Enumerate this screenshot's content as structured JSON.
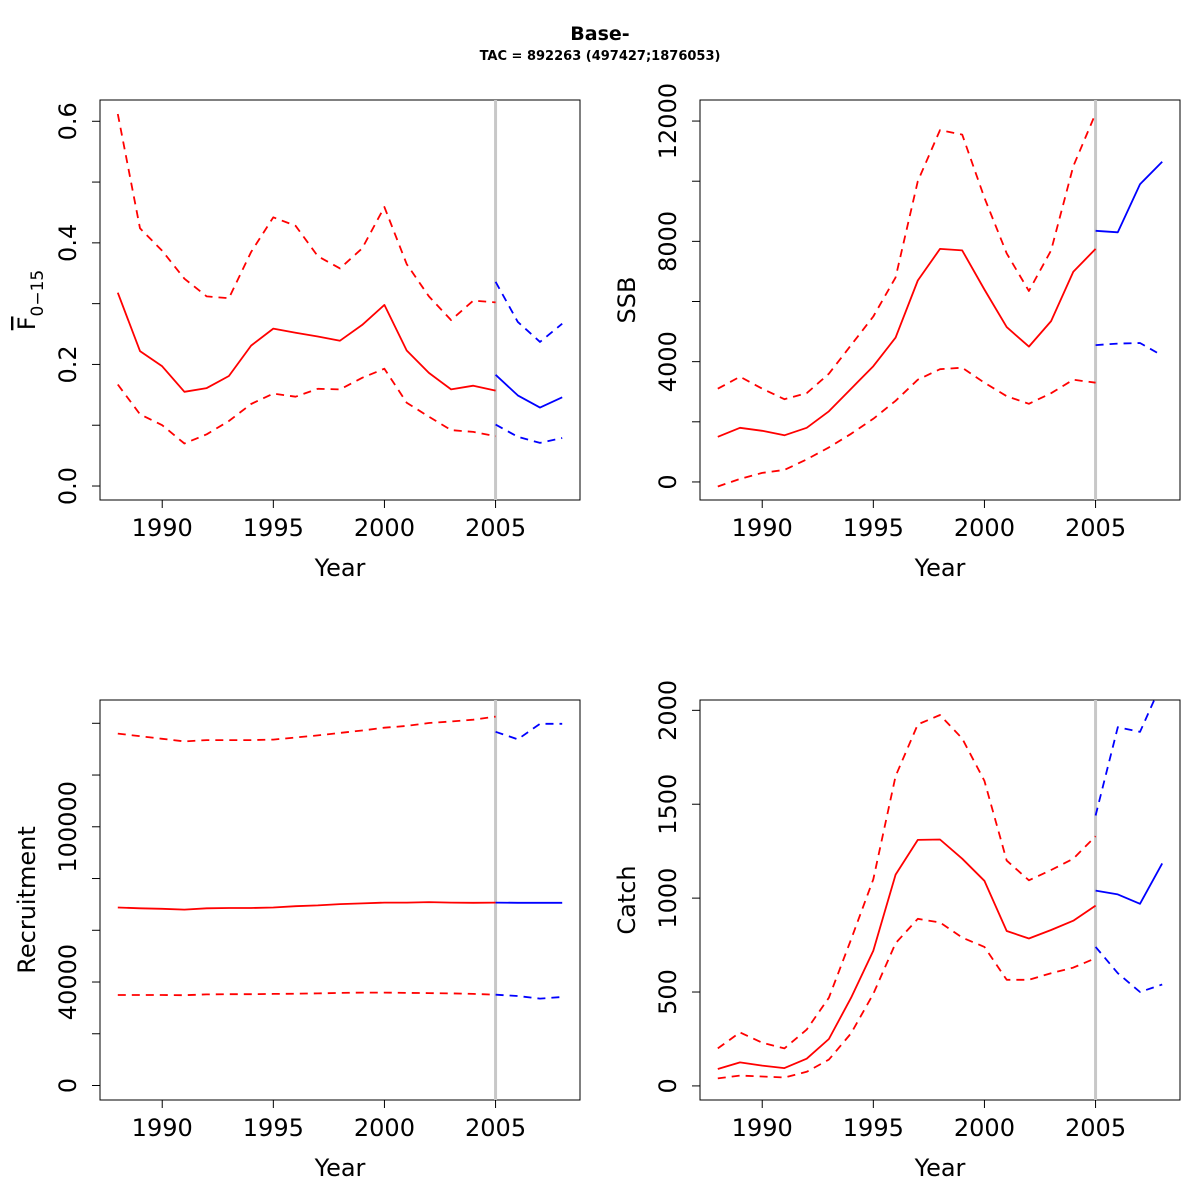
{
  "figure": {
    "title": "Base-",
    "subtitle": "TAC = 892263 (497427;1876053)"
  },
  "colors": {
    "historical": "#ff0000",
    "projection": "#0000ff",
    "divider": "#c8c8c8"
  },
  "chart_data": [
    {
      "type": "line",
      "id": "fbar",
      "ylabel_main": "F",
      "ylabel_sub": "0−15",
      "xlabel": "Year",
      "xlim": [
        1987.2,
        2008.8
      ],
      "ylim": [
        -0.023,
        0.635
      ],
      "xticks": [
        1990,
        1995,
        2000,
        2005
      ],
      "yticks": [
        0.0,
        0.2,
        0.4,
        0.6
      ],
      "yticks_minor": [
        0.1,
        0.3,
        0.5
      ],
      "ytick_labels": [
        "0.0",
        "0.2",
        "0.4",
        "0.6"
      ],
      "divider_x": 2005,
      "series": [
        {
          "style": "solid",
          "color_key": "historical",
          "x": [
            1988,
            1989,
            1990,
            1991,
            1992,
            1993,
            1994,
            1995,
            1996,
            1997,
            1998,
            1999,
            2000,
            2001,
            2002,
            2003,
            2004,
            2005
          ],
          "y": [
            0.318,
            0.222,
            0.197,
            0.155,
            0.161,
            0.181,
            0.231,
            0.259,
            0.252,
            0.246,
            0.239,
            0.265,
            0.298,
            0.223,
            0.186,
            0.159,
            0.165,
            0.157
          ]
        },
        {
          "style": "dashed",
          "color_key": "historical",
          "x": [
            1988,
            1989,
            1990,
            1991,
            1992,
            1993,
            1994,
            1995,
            1996,
            1997,
            1998,
            1999,
            2000,
            2001,
            2002,
            2003,
            2004,
            2005
          ],
          "y": [
            0.612,
            0.424,
            0.387,
            0.341,
            0.312,
            0.309,
            0.385,
            0.442,
            0.428,
            0.378,
            0.358,
            0.391,
            0.459,
            0.365,
            0.312,
            0.273,
            0.305,
            0.302
          ]
        },
        {
          "style": "dashed",
          "color_key": "historical",
          "x": [
            1988,
            1989,
            1990,
            1991,
            1992,
            1993,
            1994,
            1995,
            1996,
            1997,
            1998,
            1999,
            2000,
            2001,
            2002,
            2003,
            2004,
            2005
          ],
          "y": [
            0.167,
            0.118,
            0.1,
            0.07,
            0.085,
            0.107,
            0.135,
            0.152,
            0.147,
            0.16,
            0.159,
            0.178,
            0.193,
            0.137,
            0.114,
            0.092,
            0.089,
            0.082
          ]
        },
        {
          "style": "solid",
          "color_key": "projection",
          "x": [
            2005,
            2006,
            2007,
            2008
          ],
          "y": [
            0.183,
            0.149,
            0.129,
            0.146
          ]
        },
        {
          "style": "dashed",
          "color_key": "projection",
          "x": [
            2005,
            2006,
            2007,
            2008
          ],
          "y": [
            0.336,
            0.27,
            0.237,
            0.267
          ]
        },
        {
          "style": "dashed",
          "color_key": "projection",
          "x": [
            2005,
            2006,
            2007,
            2008
          ],
          "y": [
            0.101,
            0.081,
            0.071,
            0.079
          ]
        }
      ]
    },
    {
      "type": "line",
      "id": "ssb",
      "ylabel": "SSB",
      "xlabel": "Year",
      "xlim": [
        1987.2,
        2008.8
      ],
      "ylim": [
        -600,
        12700
      ],
      "xticks": [
        1990,
        1995,
        2000,
        2005
      ],
      "yticks": [
        0,
        4000,
        8000,
        12000
      ],
      "yticks_minor": [
        2000,
        6000,
        10000
      ],
      "ytick_labels": [
        "0",
        "4000",
        "8000",
        "12000"
      ],
      "divider_x": 2005,
      "series": [
        {
          "style": "solid",
          "color_key": "historical",
          "x": [
            1988,
            1989,
            1990,
            1991,
            1992,
            1993,
            1994,
            1995,
            1996,
            1997,
            1998,
            1999,
            2000,
            2001,
            2002,
            2003,
            2004,
            2005
          ],
          "y": [
            1500,
            1800,
            1700,
            1550,
            1800,
            2350,
            3100,
            3850,
            4800,
            6700,
            7750,
            7700,
            6400,
            5150,
            4500,
            5350,
            6990,
            7750
          ]
        },
        {
          "style": "dashed",
          "color_key": "historical",
          "x": [
            1988,
            1989,
            1990,
            1991,
            1992,
            1993,
            1994,
            1995,
            1996,
            1997,
            1998,
            1999,
            2000,
            2001,
            2002,
            2003,
            2004,
            2005
          ],
          "y": [
            3100,
            3500,
            3100,
            2750,
            2950,
            3600,
            4550,
            5500,
            6800,
            10000,
            11700,
            11550,
            9450,
            7600,
            6350,
            7700,
            10500,
            12250
          ]
        },
        {
          "style": "dashed",
          "color_key": "historical",
          "x": [
            1988,
            1989,
            1990,
            1991,
            1992,
            1993,
            1994,
            1995,
            1996,
            1997,
            1998,
            1999,
            2000,
            2001,
            2002,
            2003,
            2004,
            2005
          ],
          "y": [
            -150,
            100,
            300,
            400,
            750,
            1150,
            1600,
            2100,
            2700,
            3400,
            3750,
            3800,
            3300,
            2850,
            2600,
            2950,
            3400,
            3300
          ]
        },
        {
          "style": "solid",
          "color_key": "projection",
          "x": [
            2005,
            2006,
            2007,
            2008
          ],
          "y": [
            8350,
            8300,
            9900,
            10650
          ]
        },
        {
          "style": "dashed",
          "color_key": "projection",
          "x": [
            2005,
            2006,
            2007,
            2008
          ],
          "y": [
            4550,
            4600,
            4620,
            4200
          ]
        }
      ]
    },
    {
      "type": "line",
      "id": "recruitment",
      "ylabel": "Recruitment",
      "xlabel": "Year",
      "xlim": [
        1987.2,
        2008.8
      ],
      "ylim": [
        -5600,
        149000
      ],
      "xticks": [
        1990,
        1995,
        2000,
        2005
      ],
      "yticks": [
        0,
        40000,
        100000
      ],
      "yticks_minor": [
        20000,
        60000,
        80000,
        120000,
        140000
      ],
      "ytick_labels": [
        "0",
        "40000",
        "100000"
      ],
      "divider_x": 2005,
      "series": [
        {
          "style": "solid",
          "color_key": "historical",
          "x": [
            1988,
            1989,
            1990,
            1991,
            1992,
            1993,
            1994,
            1995,
            1996,
            1997,
            1998,
            1999,
            2000,
            2001,
            2002,
            2003,
            2004,
            2005
          ],
          "y": [
            68800,
            68500,
            68300,
            68000,
            68500,
            68600,
            68600,
            68800,
            69300,
            69600,
            70100,
            70400,
            70700,
            70700,
            70900,
            70700,
            70600,
            70700
          ]
        },
        {
          "style": "dashed",
          "color_key": "historical",
          "x": [
            1988,
            1989,
            1990,
            1991,
            1992,
            1993,
            1994,
            1995,
            1996,
            1997,
            1998,
            1999,
            2000,
            2001,
            2002,
            2003,
            2004,
            2005
          ],
          "y": [
            136000,
            135000,
            134000,
            133000,
            133500,
            133500,
            133500,
            133700,
            134500,
            135300,
            136300,
            137200,
            138300,
            139000,
            140100,
            140700,
            141400,
            142600
          ]
        },
        {
          "style": "dashed",
          "color_key": "historical",
          "x": [
            1988,
            1989,
            1990,
            1991,
            1992,
            1993,
            1994,
            1995,
            1996,
            1997,
            1998,
            1999,
            2000,
            2001,
            2002,
            2003,
            2004,
            2005
          ],
          "y": [
            35000,
            35000,
            35000,
            34900,
            35200,
            35300,
            35300,
            35400,
            35500,
            35600,
            35800,
            35900,
            35900,
            35800,
            35700,
            35600,
            35400,
            35100
          ]
        },
        {
          "style": "solid",
          "color_key": "projection",
          "x": [
            2005,
            2006,
            2007,
            2008
          ],
          "y": [
            70700,
            70600,
            70600,
            70600
          ]
        },
        {
          "style": "dashed",
          "color_key": "projection",
          "x": [
            2005,
            2006,
            2007,
            2008
          ],
          "y": [
            136700,
            133800,
            139800,
            139800
          ]
        },
        {
          "style": "dashed",
          "color_key": "projection",
          "x": [
            2005,
            2006,
            2007,
            2008
          ],
          "y": [
            35100,
            34600,
            33600,
            34200
          ]
        }
      ]
    },
    {
      "type": "line",
      "id": "catch",
      "ylabel": "Catch",
      "xlabel": "Year",
      "xlim": [
        1987.2,
        2008.8
      ],
      "ylim": [
        -75,
        2055
      ],
      "xticks": [
        1990,
        1995,
        2000,
        2005
      ],
      "yticks": [
        0,
        500,
        1000,
        1500,
        2000
      ],
      "yticks_minor": [],
      "ytick_labels": [
        "0",
        "500",
        "1000",
        "1500",
        "2000"
      ],
      "divider_x": 2005,
      "series": [
        {
          "style": "solid",
          "color_key": "historical",
          "x": [
            1988,
            1989,
            1990,
            1991,
            1992,
            1993,
            1994,
            1995,
            1996,
            1997,
            1998,
            1999,
            2000,
            2001,
            2002,
            2003,
            2004,
            2005
          ],
          "y": [
            90,
            125,
            108,
            95,
            145,
            250,
            470,
            720,
            1125,
            1310,
            1312,
            1210,
            1092,
            825,
            785,
            830,
            880,
            960
          ]
        },
        {
          "style": "dashed",
          "color_key": "historical",
          "x": [
            1988,
            1989,
            1990,
            1991,
            1992,
            1993,
            1994,
            1995,
            1996,
            1997,
            1998,
            1999,
            2000,
            2001,
            2002,
            2003,
            2004,
            2005
          ],
          "y": [
            200,
            285,
            230,
            200,
            300,
            470,
            780,
            1100,
            1650,
            1925,
            1975,
            1850,
            1625,
            1200,
            1095,
            1150,
            1210,
            1330
          ]
        },
        {
          "style": "dashed",
          "color_key": "historical",
          "x": [
            1988,
            1989,
            1990,
            1991,
            1992,
            1993,
            1994,
            1995,
            1996,
            1997,
            1998,
            1999,
            2000,
            2001,
            2002,
            2003,
            2004,
            2005
          ],
          "y": [
            40,
            55,
            50,
            45,
            75,
            140,
            280,
            490,
            760,
            890,
            870,
            790,
            740,
            565,
            565,
            600,
            630,
            680
          ]
        },
        {
          "style": "solid",
          "color_key": "projection",
          "x": [
            2005,
            2006,
            2007,
            2008
          ],
          "y": [
            1040,
            1020,
            970,
            1185
          ]
        },
        {
          "style": "dashed",
          "color_key": "projection",
          "x": [
            2005,
            2006,
            2007,
            2008
          ],
          "y": [
            1440,
            1910,
            1885,
            2150
          ]
        },
        {
          "style": "dashed",
          "color_key": "projection",
          "x": [
            2005,
            2006,
            2007,
            2008
          ],
          "y": [
            740,
            600,
            500,
            540
          ]
        }
      ]
    }
  ]
}
